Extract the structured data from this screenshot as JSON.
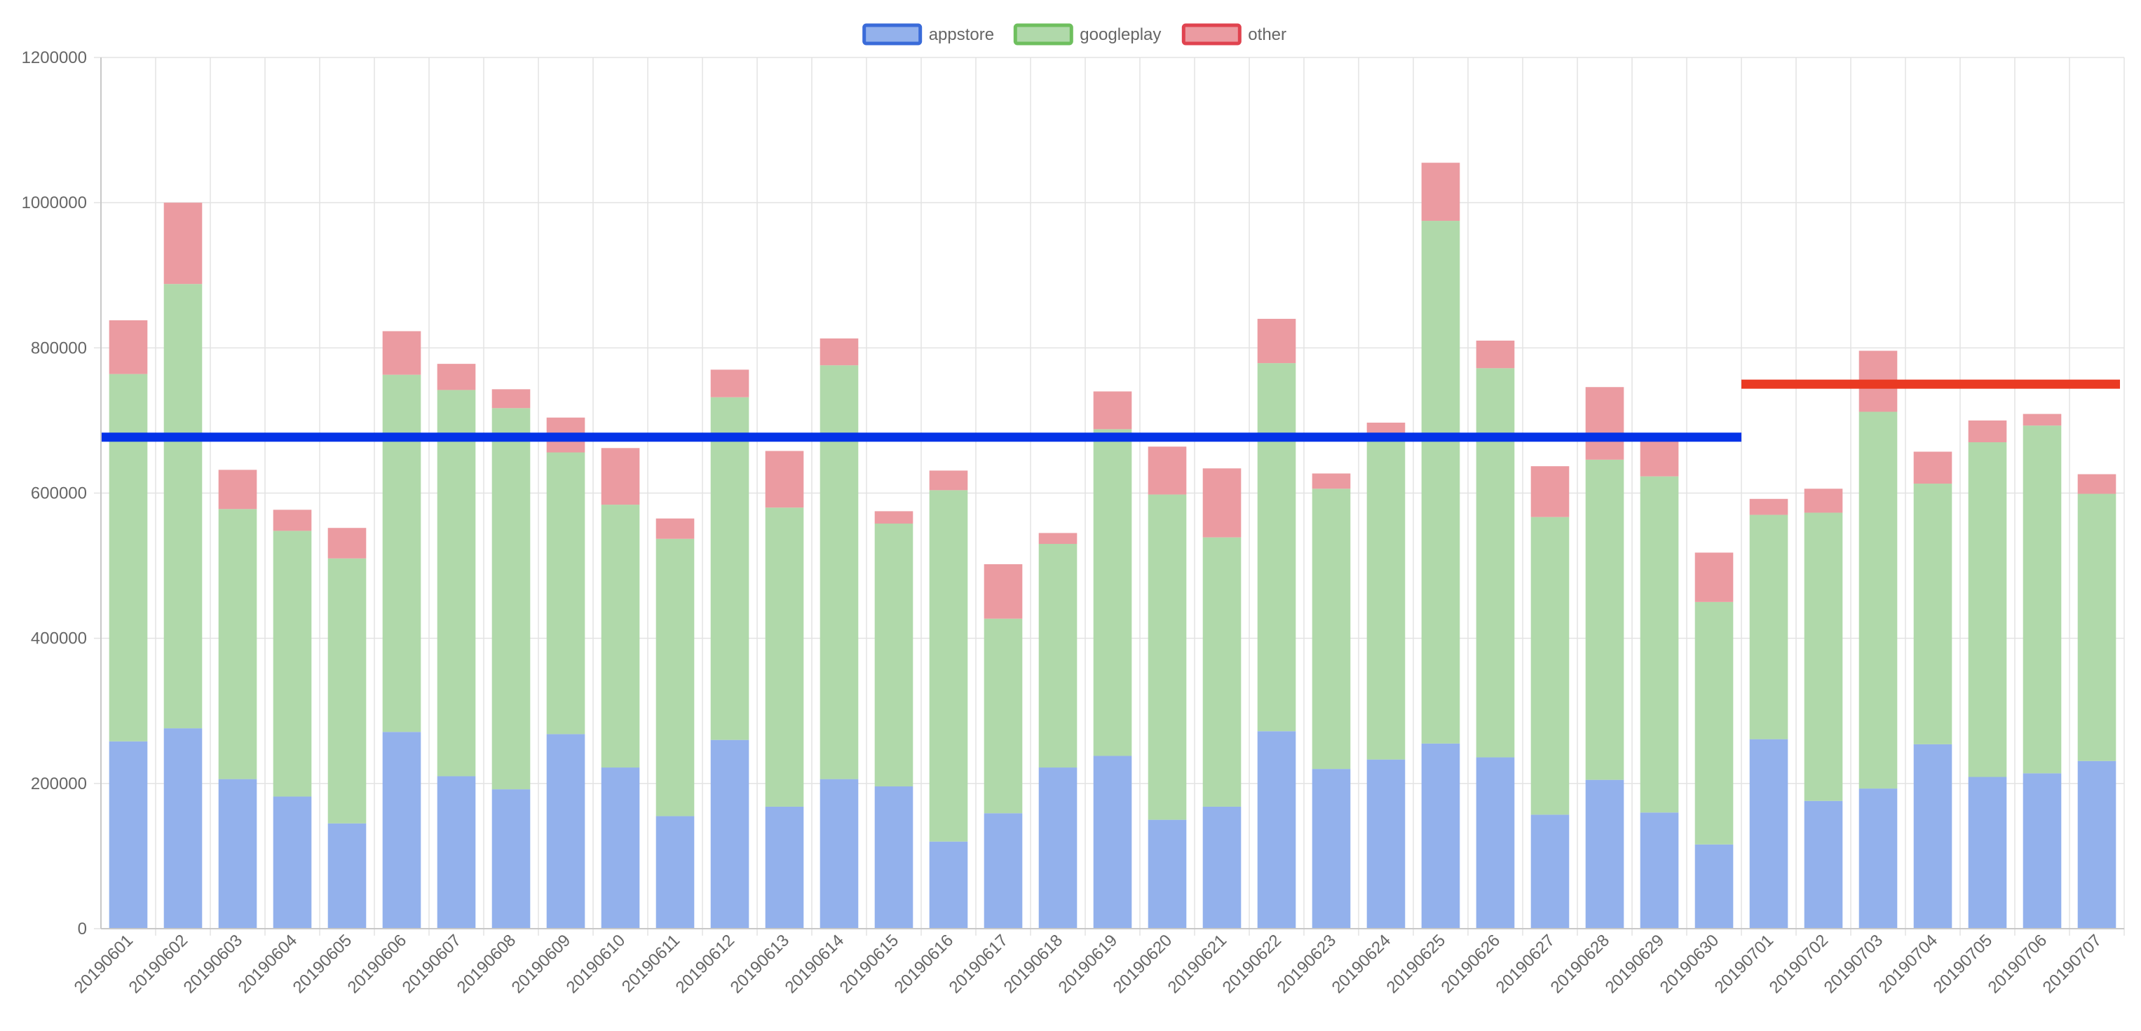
{
  "chart_data": {
    "type": "bar",
    "stacked": true,
    "categories": [
      "20190601",
      "20190602",
      "20190603",
      "20190604",
      "20190605",
      "20190606",
      "20190607",
      "20190608",
      "20190609",
      "20190610",
      "20190611",
      "20190612",
      "20190613",
      "20190614",
      "20190615",
      "20190616",
      "20190617",
      "20190618",
      "20190619",
      "20190620",
      "20190621",
      "20190622",
      "20190623",
      "20190624",
      "20190625",
      "20190626",
      "20190627",
      "20190628",
      "20190629",
      "20190630",
      "20190701",
      "20190702",
      "20190703",
      "20190704",
      "20190705",
      "20190706",
      "20190707"
    ],
    "series": [
      {
        "name": "appstore",
        "color": "#93b1ec",
        "border": "#3a6bd9",
        "values": [
          258000,
          276000,
          206000,
          182000,
          145000,
          271000,
          210000,
          192000,
          268000,
          222000,
          155000,
          260000,
          168000,
          206000,
          196000,
          120000,
          159000,
          222000,
          238000,
          150000,
          168000,
          272000,
          220000,
          233000,
          255000,
          236000,
          157000,
          205000,
          160000,
          116000,
          261000,
          176000,
          193000,
          254000,
          209000,
          214000,
          231000
        ]
      },
      {
        "name": "googleplay",
        "color": "#b0d9aa",
        "border": "#6ebf5e",
        "values": [
          506000,
          612000,
          372000,
          366000,
          365000,
          492000,
          532000,
          525000,
          388000,
          362000,
          382000,
          472000,
          412000,
          570000,
          362000,
          484000,
          268000,
          308000,
          450000,
          448000,
          371000,
          507000,
          386000,
          448000,
          720000,
          536000,
          410000,
          441000,
          463000,
          334000,
          309000,
          397000,
          519000,
          359000,
          461000,
          479000,
          368000
        ]
      },
      {
        "name": "other",
        "color": "#eb9ba1",
        "border": "#e0434f",
        "values": [
          74000,
          112000,
          54000,
          29000,
          42000,
          60000,
          36000,
          26000,
          48000,
          78000,
          28000,
          38000,
          78000,
          37000,
          17000,
          27000,
          75000,
          15000,
          52000,
          66000,
          95000,
          61000,
          21000,
          16000,
          80000,
          38000,
          70000,
          100000,
          58000,
          68000,
          22000,
          33000,
          84000,
          44000,
          30000,
          16000,
          27000
        ]
      }
    ],
    "reference_lines": [
      {
        "value": 677000,
        "from_category": "20190601",
        "to_category": "20190630",
        "color": "#0433e8"
      },
      {
        "value": 750000,
        "from_category": "20190701",
        "to_category": "20190707",
        "color": "#ea3a22"
      }
    ],
    "y_ticks": [
      "0",
      "200000",
      "400000",
      "600000",
      "800000",
      "1000000",
      "1200000"
    ],
    "ylim": [
      0,
      1200000
    ],
    "grid": true,
    "legend_position": "top-center"
  }
}
